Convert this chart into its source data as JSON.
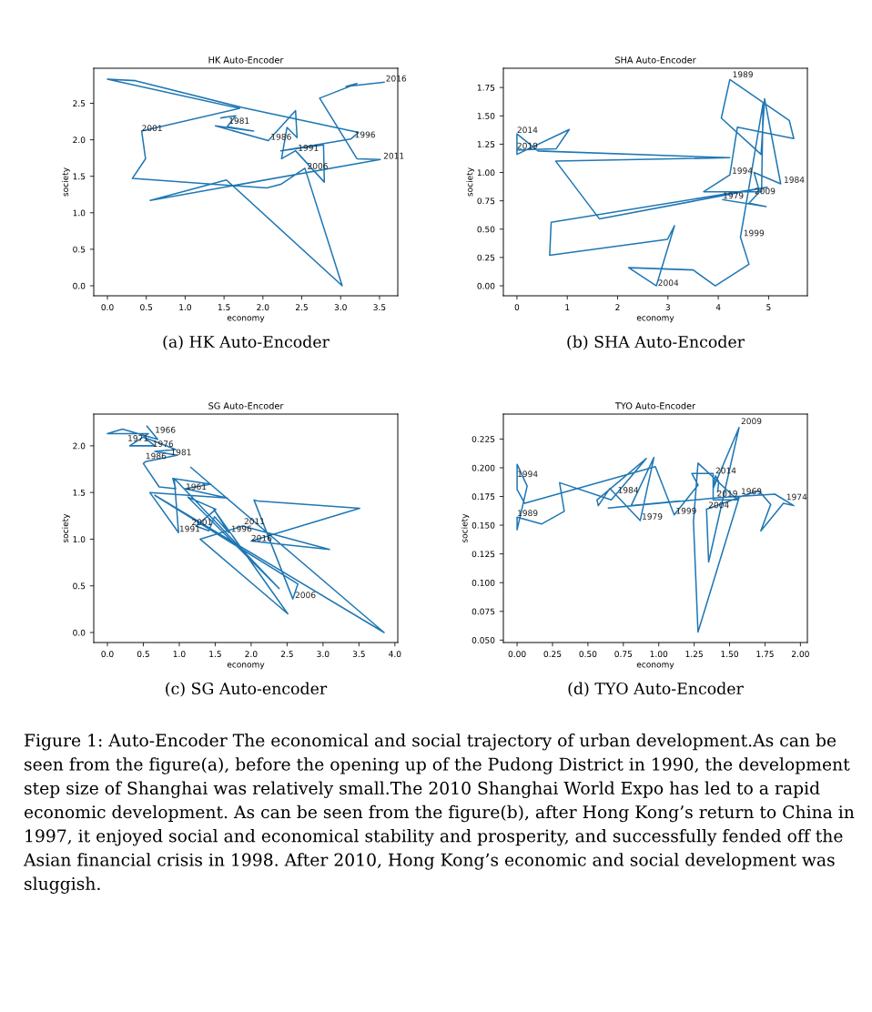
{
  "chart_data": [
    {
      "type": "line",
      "title": "HK Auto-Encoder",
      "xlabel": "economy",
      "ylabel": "society",
      "xlim": [
        -0.176,
        3.735
      ],
      "ylim": [
        -0.137,
        2.98
      ],
      "xticks": [
        {
          "value": 0,
          "label": "0.0"
        },
        0.5,
        {
          "value": 1,
          "label": "1.0"
        },
        1.5,
        {
          "value": 2,
          "label": "2.0"
        },
        2.5,
        {
          "value": 3,
          "label": "3.0"
        },
        3.5
      ],
      "yticks": [
        {
          "value": 0,
          "label": "0.0"
        },
        0.5,
        {
          "value": 1,
          "label": "1.0"
        },
        1.5,
        {
          "value": 2,
          "label": "2.0"
        },
        2.5
      ],
      "series": [
        {
          "color": "#1f77b4",
          "x": [
            1.46,
            1.65,
            1.54,
            1.88,
            1.39,
            2.07,
            2.42,
            2.44,
            2.31,
            2.24,
            2.42,
            2.79,
            2.78,
            2.23,
            3.13,
            3.23,
            1.74,
            0.36,
            0.0,
            1.7,
            0.44,
            0.49,
            0.32,
            2.05,
            2.23,
            2.54,
            3.02,
            1.53,
            0.55,
            3.51,
            3.21,
            2.73,
            3.21,
            3.07,
            3.56
          ],
          "values": [
            2.3,
            2.33,
            2.18,
            2.12,
            2.19,
            1.99,
            2.4,
            2.03,
            2.17,
            1.74,
            1.85,
            1.42,
            1.93,
            1.85,
            2.01,
            2.1,
            2.44,
            2.81,
            2.83,
            2.43,
            2.12,
            1.74,
            1.47,
            1.34,
            1.39,
            1.61,
            0.0,
            1.45,
            1.17,
            1.73,
            1.74,
            2.57,
            2.77,
            2.73,
            2.79
          ]
        }
      ],
      "annotations": [
        {
          "text": "1981",
          "x": 1.56,
          "y": 2.22
        },
        {
          "text": "1986",
          "x": 2.1,
          "y": 2.0
        },
        {
          "text": "1991",
          "x": 2.45,
          "y": 1.85
        },
        {
          "text": "1996",
          "x": 3.18,
          "y": 2.03
        },
        {
          "text": "2001",
          "x": 0.44,
          "y": 2.12
        },
        {
          "text": "2006",
          "x": 2.57,
          "y": 1.6
        },
        {
          "text": "2011",
          "x": 3.55,
          "y": 1.74
        },
        {
          "text": "2016",
          "x": 3.58,
          "y": 2.8
        },
        "(a) HK Auto-Encoder"
      ]
    },
    {
      "type": "line",
      "title": "SHA Auto-Encoder",
      "xlabel": "economy",
      "ylabel": "society",
      "xlim": [
        -0.27,
        5.77
      ],
      "ylim": [
        -0.088,
        1.92
      ],
      "xticks": [
        0,
        1,
        2,
        3,
        4,
        5
      ],
      "yticks": [
        {
          "value": 0,
          "label": "0.00"
        },
        {
          "value": 0.25,
          "label": "0.25"
        },
        {
          "value": 0.5,
          "label": "0.50"
        },
        {
          "value": 0.75,
          "label": "0.75"
        },
        {
          "value": 1.0,
          "label": "1.00"
        },
        {
          "value": 1.25,
          "label": "1.25"
        },
        {
          "value": 1.5,
          "label": "1.50"
        },
        {
          "value": 1.75,
          "label": "1.75"
        }
      ],
      "series": [
        {
          "color": "#1f77b4",
          "x": [
            4.09,
            4.95,
            4.61,
            4.82,
            4.71,
            5.24,
            4.92,
            4.85,
            4.06,
            4.23,
            5.41,
            5.5,
            4.38,
            4.23,
            3.71,
            4.86,
            4.89,
            4.53,
            4.44,
            4.61,
            3.94,
            3.5,
            2.22,
            2.77,
            3.13,
            2.99,
            0.65,
            0.68,
            4.97,
            1.64,
            0.77,
            4.23,
            0.42,
            0.0,
            0.0,
            1.04,
            0.78,
            0.0
          ],
          "values": [
            0.76,
            0.7,
            0.73,
            0.83,
            1.0,
            0.9,
            1.65,
            1.16,
            1.48,
            1.82,
            1.46,
            1.3,
            1.4,
            0.98,
            0.83,
            0.83,
            1.61,
            0.66,
            0.43,
            0.19,
            0.0,
            0.14,
            0.16,
            0.0,
            0.53,
            0.41,
            0.27,
            0.56,
            0.87,
            0.59,
            1.1,
            1.13,
            1.19,
            1.34,
            1.16,
            1.38,
            1.21,
            1.2
          ]
        }
      ],
      "annotations": [
        {
          "text": "1979",
          "x": 4.09,
          "y": 0.77
        },
        {
          "text": "1984",
          "x": 5.3,
          "y": 0.91
        },
        {
          "text": "1989",
          "x": 4.28,
          "y": 1.84
        },
        {
          "text": "1994",
          "x": 4.27,
          "y": 0.99
        },
        {
          "text": "1999",
          "x": 4.5,
          "y": 0.44
        },
        {
          "text": "2004",
          "x": 2.8,
          "y": 0.0
        },
        {
          "text": "2009",
          "x": 4.72,
          "y": 0.81
        },
        {
          "text": "2014",
          "x": 0.0,
          "y": 1.35
        },
        {
          "text": "2019",
          "x": 0.0,
          "y": 1.21
        },
        "(b) SHA Auto-Encoder"
      ]
    },
    {
      "type": "line",
      "title": "SG Auto-Encoder",
      "xlabel": "economy",
      "ylabel": "society",
      "xlim": [
        -0.19,
        4.04
      ],
      "ylim": [
        -0.107,
        2.34
      ],
      "xticks": [
        {
          "value": 0,
          "label": "0.0"
        },
        0.5,
        {
          "value": 1,
          "label": "1.0"
        },
        1.5,
        {
          "value": 2,
          "label": "2.0"
        },
        2.5,
        {
          "value": 3,
          "label": "3.0"
        },
        3.5,
        {
          "value": 4,
          "label": "4.0"
        }
      ],
      "yticks": [
        {
          "value": 0,
          "label": "0.0"
        },
        0.5,
        {
          "value": 1,
          "label": "1.0"
        },
        1.5,
        {
          "value": 2,
          "label": "2.0"
        }
      ],
      "series": [
        {
          "color": "#1f77b4",
          "x": [
            0.55,
            0.7,
            0.21,
            0.0,
            0.57,
            0.31,
            0.66,
            0.51,
            0.72,
            0.95,
            0.66,
            0.97,
            0.53,
            0.5,
            0.72,
            0.95,
            0.91,
            1.44,
            1.08,
            1.67,
            0.59,
            0.99,
            0.93,
            2.39,
            1.12,
            1.51,
            1.23,
            1.41,
            1.49,
            1.69,
            1.48,
            2.51,
            1.29,
            1.88,
            3.09,
            2.0,
            3.51,
            2.09,
            2.04,
            2.58,
            2.65,
            0.66,
            3.85,
            1.16
          ],
          "values": [
            2.21,
            2.07,
            2.18,
            2.13,
            2.13,
            2.0,
            2.0,
            2.09,
            2.03,
            1.96,
            1.94,
            1.9,
            1.83,
            1.81,
            1.56,
            1.54,
            1.65,
            1.59,
            1.54,
            1.44,
            1.5,
            1.07,
            1.65,
            0.47,
            1.45,
            1.32,
            1.14,
            1.09,
            1.24,
            1.07,
            1.32,
            0.2,
            1.0,
            1.14,
            0.89,
            0.98,
            1.33,
            1.41,
            1.42,
            0.36,
            0.52,
            1.47,
            0.0,
            1.77
          ]
        }
      ],
      "annotations": [
        {
          "text": "1961",
          "x": 1.09,
          "y": 1.53
        },
        {
          "text": "1966",
          "x": 0.66,
          "y": 2.14
        },
        {
          "text": "1971",
          "x": 0.28,
          "y": 2.05
        },
        {
          "text": "1976",
          "x": 0.63,
          "y": 1.99
        },
        {
          "text": "1981",
          "x": 0.88,
          "y": 1.9
        },
        {
          "text": "1986",
          "x": 0.53,
          "y": 1.86
        },
        {
          "text": "1991",
          "x": 1.0,
          "y": 1.08
        },
        {
          "text": "1996",
          "x": 1.72,
          "y": 1.08
        },
        {
          "text": "2001",
          "x": 1.17,
          "y": 1.15
        },
        {
          "text": "2006",
          "x": 2.61,
          "y": 0.37
        },
        {
          "text": "2011",
          "x": 1.9,
          "y": 1.16
        },
        {
          "text": "2016",
          "x": 2.0,
          "y": 0.98
        },
        "(c) SG Auto-encoder"
      ]
    },
    {
      "type": "line",
      "title": "TYO Auto-Encoder",
      "xlabel": "economy",
      "ylabel": "society",
      "xlim": [
        -0.097,
        2.049
      ],
      "ylim": [
        0.0479,
        0.2467
      ],
      "xticks": [
        {
          "value": 0,
          "label": "0.00"
        },
        {
          "value": 0.25,
          "label": "0.25"
        },
        {
          "value": 0.5,
          "label": "0.50"
        },
        {
          "value": 0.75,
          "label": "0.75"
        },
        {
          "value": 1.0,
          "label": "1.00"
        },
        {
          "value": 1.25,
          "label": "1.25"
        },
        {
          "value": 1.5,
          "label": "1.50"
        },
        {
          "value": 1.75,
          "label": "1.75"
        },
        {
          "value": 2.0,
          "label": "2.00"
        }
      ],
      "yticks": [
        {
          "value": 0.05,
          "label": "0.050"
        },
        {
          "value": 0.075,
          "label": "0.075"
        },
        {
          "value": 0.1,
          "label": "0.100"
        },
        {
          "value": 0.125,
          "label": "0.125"
        },
        {
          "value": 0.15,
          "label": "0.150"
        },
        {
          "value": 0.175,
          "label": "0.175"
        },
        {
          "value": 0.2,
          "label": "0.200"
        },
        {
          "value": 0.225,
          "label": "0.225"
        }
      ],
      "series": [
        {
          "color": "#1f77b4",
          "x": [
            1.556,
            1.706,
            1.79,
            1.72,
            1.88,
            1.953,
            1.82,
            1.427,
            0.644,
            1.148,
            0.805,
            0.966,
            0.869,
            0.655,
            0.573,
            0.564,
            0.912,
            0.665,
            0.3,
            0.333,
            0.172,
            0.0,
            0.0,
            0.071,
            0.0,
            0.0,
            0.054,
            0.976,
            1.109,
            1.277,
            1.234,
            1.384,
            1.384,
            1.556,
            1.277,
            1.245,
            1.277,
            1.567,
            1.337,
            1.352,
            1.567,
            1.384,
            1.401,
            1.423,
            1.416
          ],
          "values": [
            0.174,
            0.18,
            0.168,
            0.145,
            0.169,
            0.167,
            0.177,
            0.174,
            0.165,
            0.171,
            0.167,
            0.209,
            0.154,
            0.182,
            0.167,
            0.172,
            0.208,
            0.172,
            0.187,
            0.162,
            0.151,
            0.157,
            0.146,
            0.184,
            0.203,
            0.181,
            0.169,
            0.201,
            0.159,
            0.185,
            0.195,
            0.195,
            0.172,
            0.172,
            0.204,
            0.153,
            0.057,
            0.174,
            0.164,
            0.118,
            0.235,
            0.182,
            0.193,
            0.188,
            0.179
          ]
        }
      ],
      "annotations": [
        {
          "text": "1969",
          "x": 1.58,
          "y": 0.177
        },
        {
          "text": "1974",
          "x": 1.9,
          "y": 0.172
        },
        {
          "text": "1979",
          "x": 0.88,
          "y": 0.155
        },
        {
          "text": "1984",
          "x": 0.71,
          "y": 0.178
        },
        {
          "text": "1989",
          "x": 0.0,
          "y": 0.158
        },
        {
          "text": "1994",
          "x": 0.0,
          "y": 0.192
        },
        {
          "text": "1999",
          "x": 1.12,
          "y": 0.16
        },
        {
          "text": "2004",
          "x": 1.35,
          "y": 0.165
        },
        {
          "text": "2009",
          "x": 1.58,
          "y": 0.238
        },
        {
          "text": "2014",
          "x": 1.4,
          "y": 0.195
        },
        {
          "text": "2019",
          "x": 1.41,
          "y": 0.175
        },
        "(d) TYO Auto-Encoder",
        "Figure 1: Auto-Encoder The economical and social trajectory of urban development.As can be seen from the figure(a), before the opening up of the Pudong District in 1990, the development step size of Shanghai was relatively small.The 2010 Shanghai World Expo has led to a rapid economic development. As can be seen from the figure(b), after Hong Kong’s return to China in 1997, it enjoyed social and economical stability and prosperity, and successfully fended off the Asian financial crisis in 1998. After 2010, Hong Kong’s economic and social development was sluggish."
      ]
    }
  ]
}
